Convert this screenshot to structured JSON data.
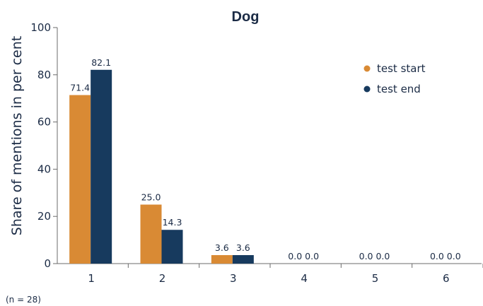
{
  "chart_data": {
    "type": "bar",
    "title": "Dog",
    "ylabel": "Share of mentions in per cent",
    "xlabel": "",
    "categories": [
      "1",
      "2",
      "3",
      "4",
      "5",
      "6"
    ],
    "ylim": [
      0,
      100
    ],
    "yticks": [
      0,
      20,
      40,
      60,
      80,
      100
    ],
    "grid": false,
    "legend_position": "top-right",
    "series": [
      {
        "name": "test start",
        "color": "#d98a34",
        "values": [
          71.4,
          25.0,
          3.6,
          0.0,
          0.0,
          0.0
        ]
      },
      {
        "name": "test end",
        "color": "#173a5e",
        "values": [
          82.1,
          14.3,
          3.6,
          0.0,
          0.0,
          0.0
        ]
      }
    ],
    "footnote": "(n = 28)"
  }
}
